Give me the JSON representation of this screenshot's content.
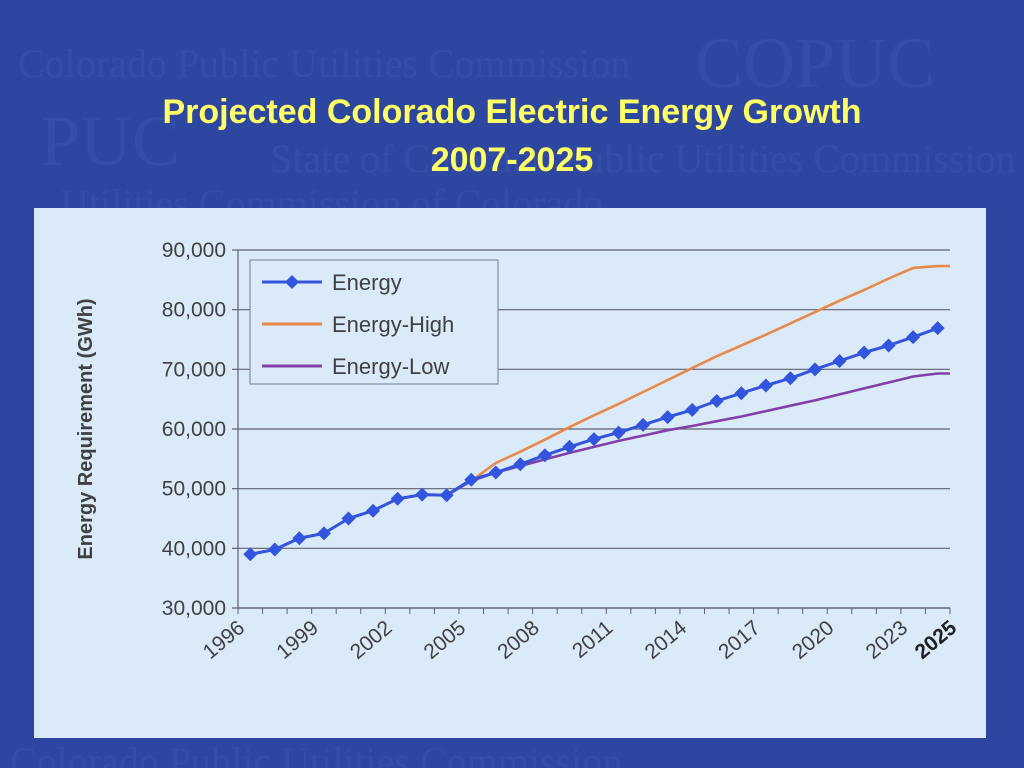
{
  "slide": {
    "title_line1": "Projected Colorado Electric Energy Growth",
    "title_line2": "2007-2025"
  },
  "watermark": {
    "name": "Colorado Public Utilities Commission",
    "abbr": "COPUC",
    "abbr2": "PUC",
    "state": "State of Colorado Public Utilities Commission",
    "phrase": "Utilities Commission of Colorado"
  },
  "colors": {
    "background": "#2d46a0",
    "title": "#ffff66",
    "panel": "#daeaf8",
    "energy": "#3355dd",
    "energy_high": "#e8894a",
    "energy_low": "#8040a8"
  },
  "chart_data": {
    "type": "line",
    "ylabel": "Energy Requirement (GWh)",
    "xlabel": "",
    "ylim": [
      30000,
      90000
    ],
    "yticks": [
      30000,
      40000,
      50000,
      60000,
      70000,
      80000,
      90000
    ],
    "ytick_labels": [
      "30,000",
      "40,000",
      "50,000",
      "60,000",
      "70,000",
      "80,000",
      "90,000"
    ],
    "xlim": [
      1996,
      2025
    ],
    "xticks": [
      1996,
      1999,
      2002,
      2005,
      2008,
      2011,
      2014,
      2017,
      2020,
      2023,
      2025
    ],
    "xtick_labels": [
      "1996",
      "1999",
      "2002",
      "2005",
      "2008",
      "2011",
      "2014",
      "2017",
      "2020",
      "2023",
      "2025"
    ],
    "grid": true,
    "legend_position": "top-left",
    "series": [
      {
        "name": "Energy",
        "marker": "diamond",
        "x": [
          1996.5,
          1997.5,
          1998.5,
          1999.5,
          2000.5,
          2001.5,
          2002.5,
          2003.5,
          2004.5,
          2005.5,
          2006.5,
          2007.5,
          2008.5,
          2009.5,
          2010.5,
          2011.5,
          2012.5,
          2013.5,
          2014.5,
          2015.5,
          2016.5,
          2017.5,
          2018.5,
          2019.5,
          2020.5,
          2021.5,
          2022.5,
          2023.5,
          2024.5
        ],
        "values": [
          39000,
          39800,
          41700,
          42500,
          45000,
          46300,
          48300,
          49000,
          48900,
          51500,
          52700,
          54100,
          55600,
          57000,
          58300,
          59400,
          60700,
          62000,
          63200,
          64700,
          66000,
          67300,
          68500,
          70000,
          71400,
          72800,
          74000,
          75400,
          76900
        ]
      },
      {
        "name": "Energy-High",
        "x": [
          1996.5,
          1997.5,
          1998.5,
          1999.5,
          2000.5,
          2001.5,
          2002.5,
          2003.5,
          2004.5,
          2005.5,
          2006.5,
          2007.5,
          2008.5,
          2009.5,
          2010.5,
          2011.5,
          2012.5,
          2013.5,
          2014.5,
          2015.5,
          2016.5,
          2017.5,
          2018.5,
          2019.5,
          2020.5,
          2021.5,
          2022.5,
          2023.5,
          2024.5,
          2025
        ],
        "values": [
          39000,
          39800,
          41700,
          42500,
          45000,
          46300,
          48300,
          49000,
          48900,
          51300,
          54300,
          56200,
          58200,
          60300,
          62300,
          64200,
          66200,
          68200,
          70200,
          72200,
          74000,
          75800,
          77700,
          79600,
          81500,
          83300,
          85200,
          87000,
          87300,
          87300
        ]
      },
      {
        "name": "Energy-Low",
        "x": [
          1996.5,
          1997.5,
          1998.5,
          1999.5,
          2000.5,
          2001.5,
          2002.5,
          2003.5,
          2004.5,
          2005.5,
          2006.5,
          2007.5,
          2008.5,
          2009.5,
          2010.5,
          2011.5,
          2012.5,
          2013.5,
          2014.5,
          2015.5,
          2016.5,
          2017.5,
          2018.5,
          2019.5,
          2020.5,
          2021.5,
          2022.5,
          2023.5,
          2024.5,
          2025
        ],
        "values": [
          39000,
          39800,
          41700,
          42500,
          45000,
          46300,
          48300,
          49000,
          48900,
          51300,
          52700,
          53800,
          54900,
          56000,
          57000,
          58000,
          58900,
          59800,
          60500,
          61300,
          62100,
          63000,
          63900,
          64800,
          65800,
          66800,
          67800,
          68800,
          69300,
          69300
        ]
      }
    ]
  }
}
